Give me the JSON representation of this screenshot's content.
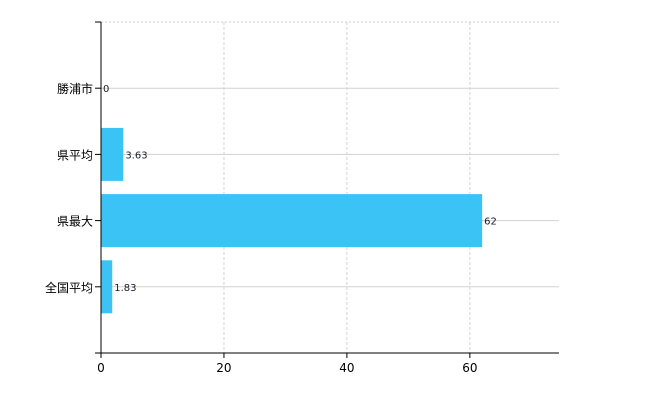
{
  "chart_data": {
    "type": "bar",
    "orientation": "horizontal",
    "categories": [
      "勝浦市",
      "県平均",
      "県最大",
      "全国平均"
    ],
    "values": [
      0,
      3.63,
      62,
      1.83
    ],
    "data_labels": [
      "0",
      "3.63",
      "62",
      "1.83"
    ],
    "xlim": [
      0,
      74.5
    ],
    "xticks": [
      0,
      20,
      40,
      60
    ],
    "grid": true,
    "bar_color": "#3cc3f6",
    "title": "",
    "xlabel": "",
    "ylabel": ""
  }
}
